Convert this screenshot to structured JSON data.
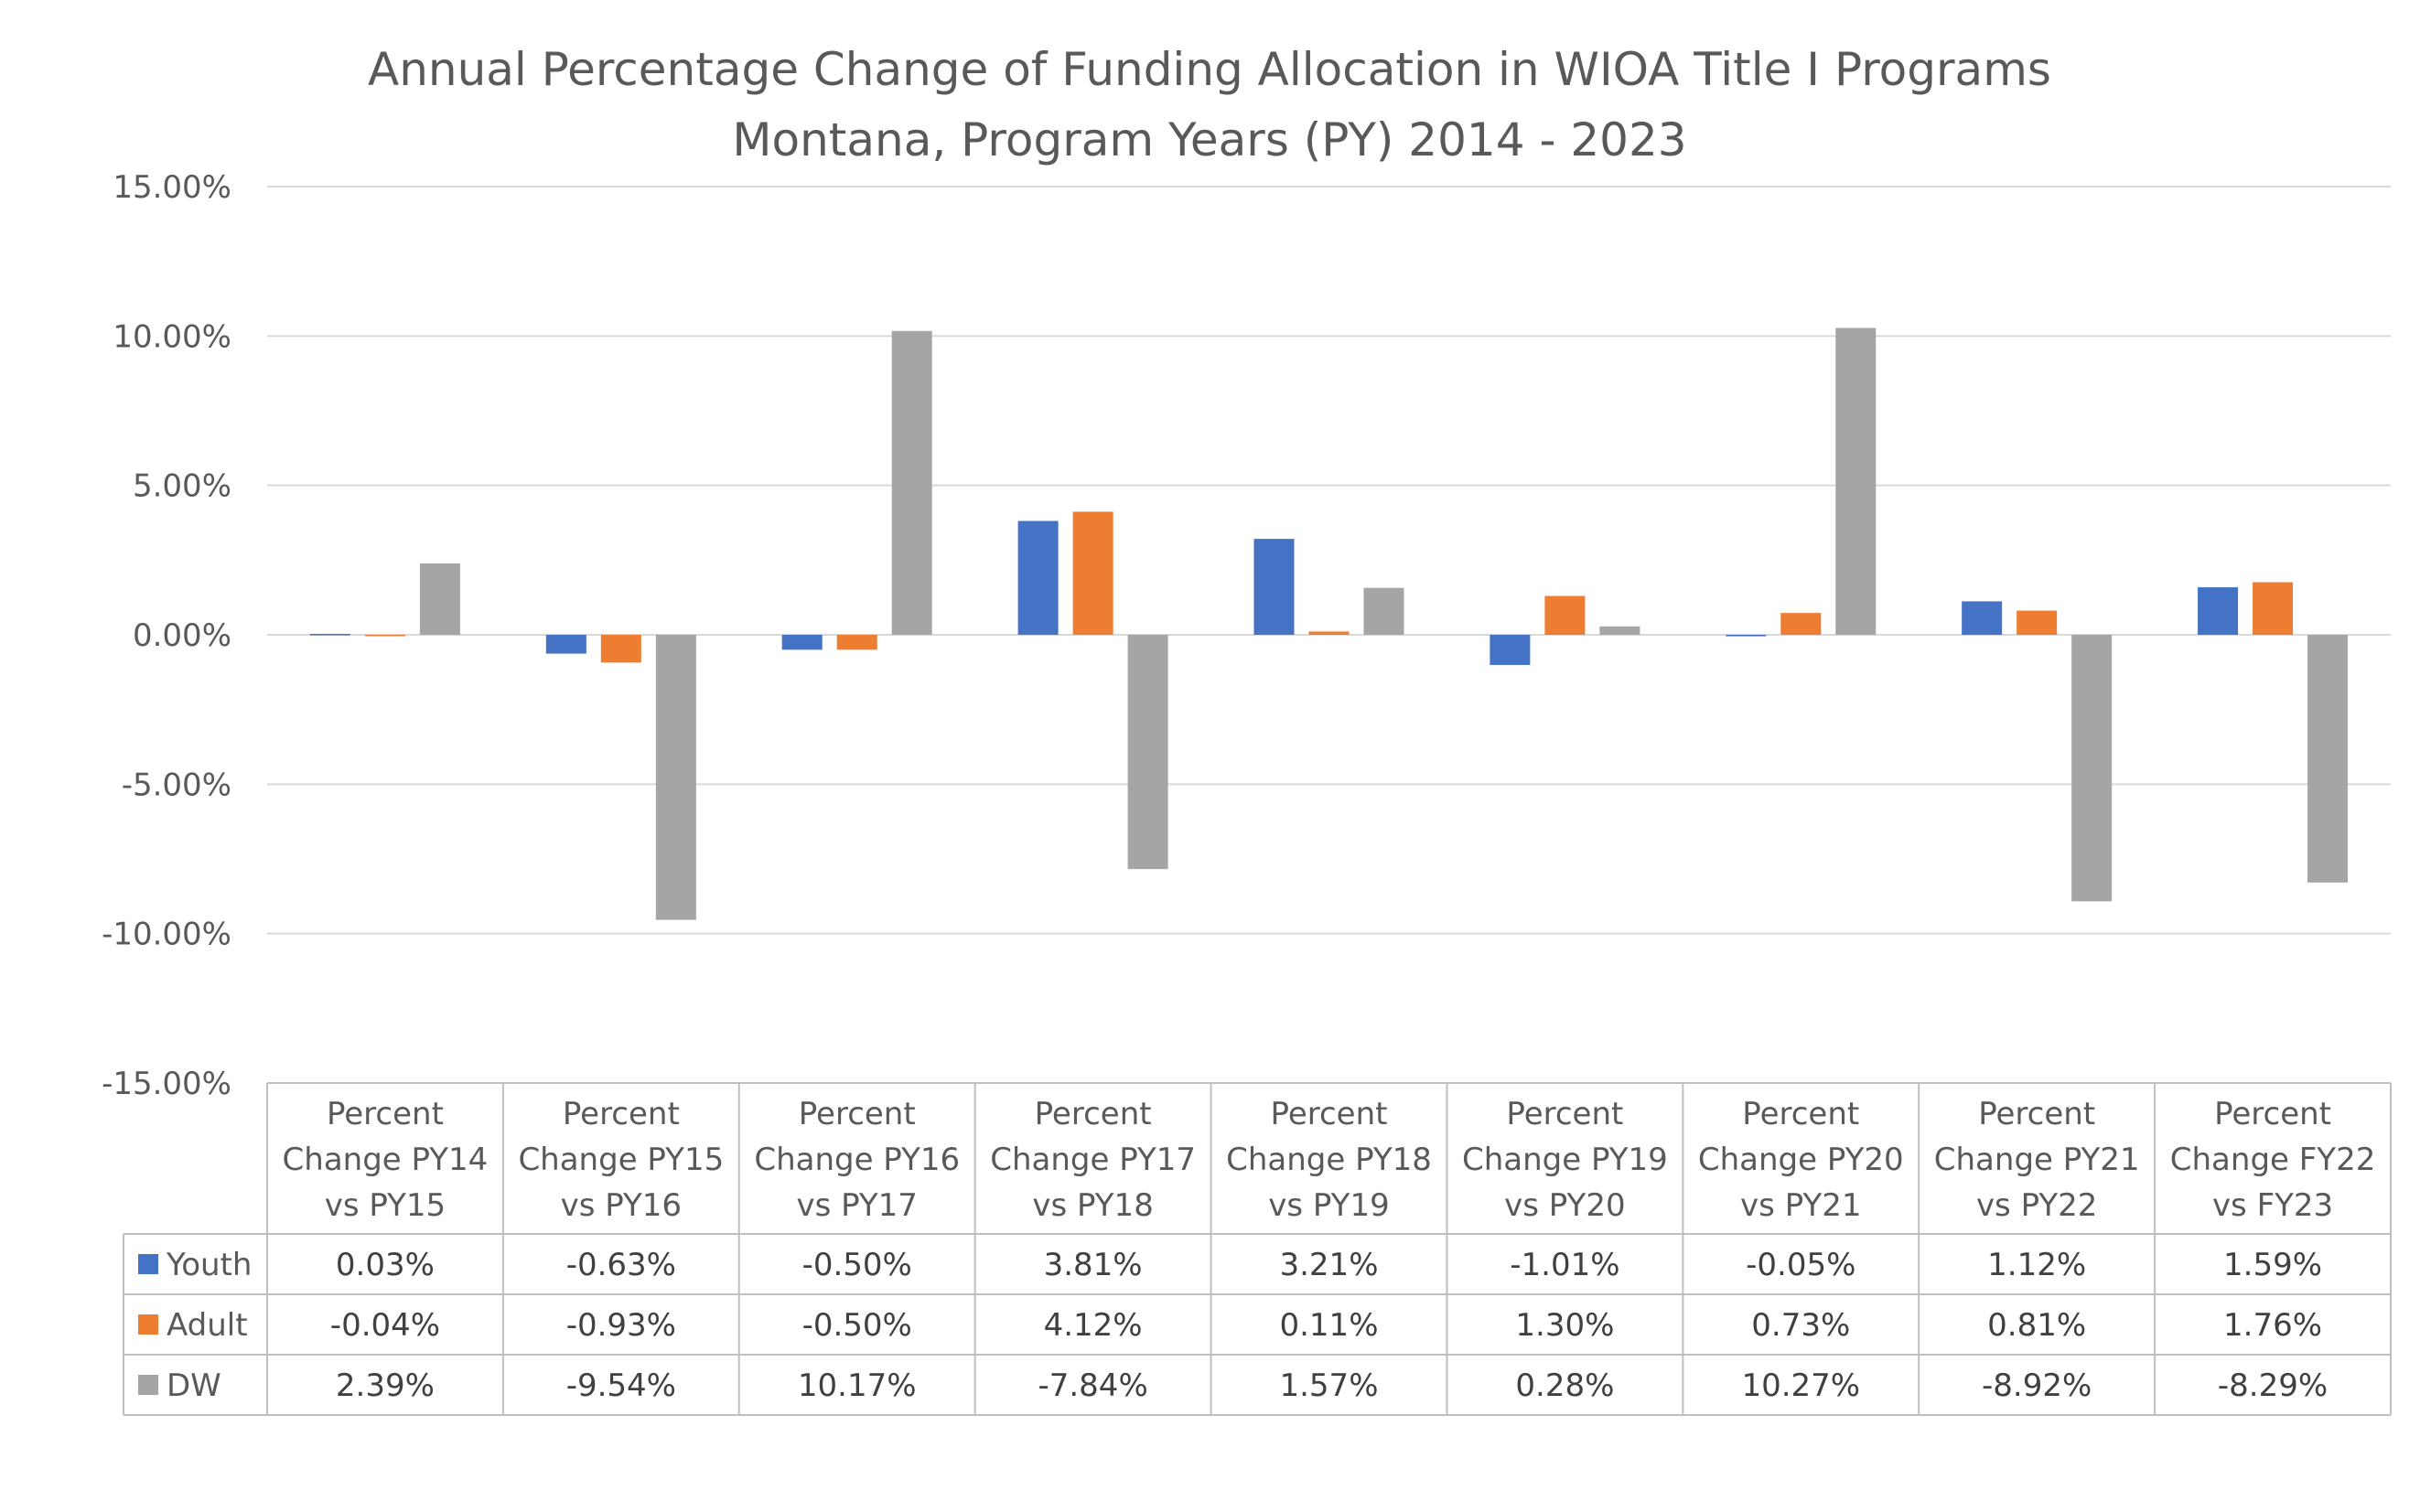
{
  "chart_data": {
    "type": "bar",
    "title": [
      "Annual Percentage Change of Funding Allocation in WIOA Title I Programs",
      "Montana, Program Years (PY) 2014 - 2023"
    ],
    "categories": [
      [
        "Percent",
        "Change PY14",
        "vs PY15"
      ],
      [
        "Percent",
        "Change PY15",
        "vs PY16"
      ],
      [
        "Percent",
        "Change PY16",
        "vs PY17"
      ],
      [
        "Percent",
        "Change PY17",
        "vs PY18"
      ],
      [
        "Percent",
        "Change PY18",
        "vs PY19"
      ],
      [
        "Percent",
        "Change PY19",
        "vs PY20"
      ],
      [
        "Percent",
        "Change PY20",
        "vs PY21"
      ],
      [
        "Percent",
        "Change PY21",
        "vs PY22"
      ],
      [
        "Percent",
        "Change FY22",
        "vs FY23"
      ]
    ],
    "series": [
      {
        "name": "Youth",
        "color": "#4472C4",
        "values": [
          0.03,
          -0.63,
          -0.5,
          3.81,
          3.21,
          -1.01,
          -0.05,
          1.12,
          1.59
        ],
        "labels": [
          "0.03%",
          "-0.63%",
          "-0.50%",
          "3.81%",
          "3.21%",
          "-1.01%",
          "-0.05%",
          "1.12%",
          "1.59%"
        ]
      },
      {
        "name": "Adult",
        "color": "#ED7D31",
        "values": [
          -0.04,
          -0.93,
          -0.5,
          4.12,
          0.11,
          1.3,
          0.73,
          0.81,
          1.76
        ],
        "labels": [
          "-0.04%",
          "-0.93%",
          "-0.50%",
          "4.12%",
          "0.11%",
          "1.30%",
          "0.73%",
          "0.81%",
          "1.76%"
        ]
      },
      {
        "name": "DW",
        "color": "#A5A5A5",
        "values": [
          2.39,
          -9.54,
          10.17,
          -7.84,
          1.57,
          0.28,
          10.27,
          -8.92,
          -8.29
        ],
        "labels": [
          "2.39%",
          "-9.54%",
          "10.17%",
          "-7.84%",
          "1.57%",
          "0.28%",
          "10.27%",
          "-8.92%",
          "-8.29%"
        ]
      }
    ],
    "ylim": [
      -15,
      15
    ],
    "yticks": [
      {
        "value": 15,
        "label": "15.00%"
      },
      {
        "value": 10,
        "label": "10.00%"
      },
      {
        "value": 5,
        "label": "5.00%"
      },
      {
        "value": 0,
        "label": "0.00%"
      },
      {
        "value": -5,
        "label": "-5.00%"
      },
      {
        "value": -10,
        "label": "-10.00%"
      },
      {
        "value": -15,
        "label": "-15.00%"
      }
    ],
    "grid": true,
    "legend": "data-table",
    "colors": {
      "grid": "#D9D9D9",
      "text": "#595959",
      "table_border": "#BFBFBF"
    }
  }
}
